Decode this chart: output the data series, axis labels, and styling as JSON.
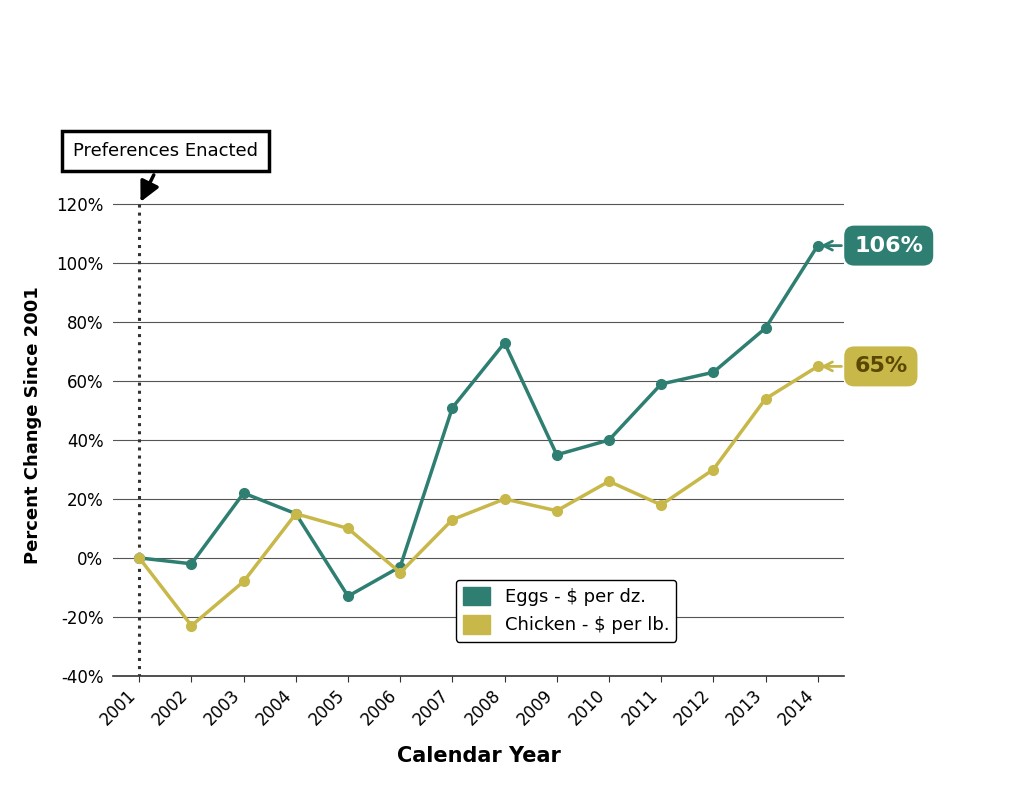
{
  "years": [
    2001,
    2002,
    2003,
    2004,
    2005,
    2006,
    2007,
    2008,
    2009,
    2010,
    2011,
    2012,
    2013,
    2014
  ],
  "eggs": [
    0,
    -2,
    22,
    15,
    -13,
    -3,
    51,
    73,
    35,
    40,
    59,
    63,
    78,
    106
  ],
  "chicken": [
    0,
    -23,
    -8,
    15,
    10,
    -5,
    13,
    20,
    16,
    26,
    18,
    30,
    54,
    65
  ],
  "eggs_color": "#2e7f72",
  "chicken_color": "#c8b84a",
  "eggs_label": "Eggs - $ per dz.",
  "chicken_label": "Chicken - $ per lb.",
  "eggs_end_label": "106%",
  "chicken_end_label": "65%",
  "eggs_end_bg": "#2e7f72",
  "chicken_end_bg": "#c8b84a",
  "ylabel": "Percent Change Since 2001",
  "xlabel": "Calendar Year",
  "ylim": [
    -40,
    130
  ],
  "yticks": [
    -40,
    -20,
    0,
    20,
    40,
    60,
    80,
    100,
    120
  ],
  "annotation_label": "Preferences Enacted",
  "bg_color": "#ffffff",
  "grid_color": "#555555",
  "dotted_line_color": "#333333"
}
